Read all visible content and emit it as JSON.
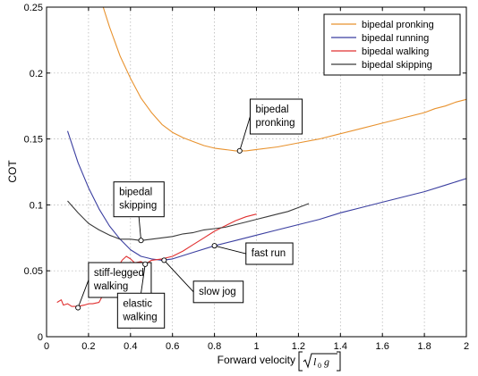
{
  "chart_data": {
    "type": "line",
    "xlabel": "Forward velocity",
    "ylabel": "COT",
    "xlim": [
      0,
      2
    ],
    "ylim": [
      0,
      0.25
    ],
    "x_ticks": [
      "0",
      "0.2",
      "0.4",
      "0.6",
      "0.8",
      "1",
      "1.2",
      "1.4",
      "1.6",
      "1.8",
      "2"
    ],
    "y_ticks": [
      "0",
      "0.05",
      "0.1",
      "0.15",
      "0.2",
      "0.25"
    ],
    "grid": true,
    "legend_position": "top-right",
    "series": [
      {
        "name": "bipedal pronking",
        "color": "#e8922e",
        "x": [
          0.27,
          0.3,
          0.35,
          0.4,
          0.45,
          0.5,
          0.55,
          0.6,
          0.65,
          0.7,
          0.75,
          0.8,
          0.85,
          0.9,
          0.95,
          1.0,
          1.1,
          1.2,
          1.3,
          1.4,
          1.5,
          1.6,
          1.7,
          1.8,
          1.85,
          1.9,
          1.95,
          2.0
        ],
        "y": [
          0.25,
          0.235,
          0.213,
          0.196,
          0.181,
          0.17,
          0.161,
          0.155,
          0.151,
          0.148,
          0.145,
          0.143,
          0.142,
          0.141,
          0.141,
          0.142,
          0.144,
          0.147,
          0.15,
          0.154,
          0.158,
          0.162,
          0.166,
          0.17,
          0.173,
          0.175,
          0.178,
          0.18
        ]
      },
      {
        "name": "bipedal running",
        "color": "#3b3fa0",
        "x": [
          0.1,
          0.15,
          0.2,
          0.25,
          0.3,
          0.35,
          0.4,
          0.45,
          0.5,
          0.55,
          0.6,
          0.7,
          0.8,
          0.9,
          1.0,
          1.1,
          1.2,
          1.3,
          1.4,
          1.5,
          1.6,
          1.7,
          1.8,
          1.9,
          2.0
        ],
        "y": [
          0.156,
          0.132,
          0.113,
          0.097,
          0.084,
          0.074,
          0.066,
          0.061,
          0.059,
          0.058,
          0.059,
          0.064,
          0.069,
          0.073,
          0.077,
          0.081,
          0.085,
          0.089,
          0.094,
          0.098,
          0.102,
          0.106,
          0.11,
          0.115,
          0.12
        ]
      },
      {
        "name": "bipedal walking",
        "color": "#e03030",
        "x": [
          0.05,
          0.07,
          0.08,
          0.1,
          0.12,
          0.15,
          0.18,
          0.2,
          0.22,
          0.25,
          0.27,
          0.3,
          0.33,
          0.36,
          0.38,
          0.4,
          0.42,
          0.45,
          0.47,
          0.5,
          0.55,
          0.6,
          0.65,
          0.7,
          0.75,
          0.8,
          0.85,
          0.9,
          0.95,
          1.0
        ],
        "y": [
          0.026,
          0.028,
          0.024,
          0.025,
          0.023,
          0.023,
          0.024,
          0.025,
          0.025,
          0.026,
          0.032,
          0.04,
          0.05,
          0.058,
          0.061,
          0.059,
          0.056,
          0.057,
          0.055,
          0.058,
          0.059,
          0.061,
          0.065,
          0.07,
          0.075,
          0.08,
          0.084,
          0.088,
          0.091,
          0.093
        ]
      },
      {
        "name": "bipedal skipping",
        "color": "#3a3a3a",
        "x": [
          0.1,
          0.15,
          0.2,
          0.25,
          0.3,
          0.35,
          0.4,
          0.45,
          0.5,
          0.55,
          0.6,
          0.65,
          0.7,
          0.75,
          0.8,
          0.85,
          0.9,
          0.95,
          1.0,
          1.05,
          1.1,
          1.15,
          1.2,
          1.25
        ],
        "y": [
          0.103,
          0.094,
          0.086,
          0.081,
          0.077,
          0.074,
          0.074,
          0.073,
          0.074,
          0.075,
          0.076,
          0.078,
          0.079,
          0.081,
          0.082,
          0.083,
          0.085,
          0.087,
          0.089,
          0.091,
          0.093,
          0.095,
          0.098,
          0.101
        ]
      }
    ],
    "annotations": [
      {
        "label": "bipedal pronking",
        "lines": [
          "bipedal",
          "pronking"
        ],
        "point": [
          0.92,
          0.141
        ],
        "box_corner": [
          0.97,
          0.167
        ]
      },
      {
        "label": "bipedal skipping",
        "lines": [
          "bipedal",
          "skipping"
        ],
        "point": [
          0.45,
          0.073
        ],
        "box_corner": [
          0.44,
          0.091
        ]
      },
      {
        "label": "stiff-legged walking",
        "lines": [
          "stiff-legged",
          "walking"
        ],
        "point": [
          0.15,
          0.022
        ],
        "box_corner": [
          0.2,
          0.043
        ]
      },
      {
        "label": "fast run",
        "lines": [
          "fast run"
        ],
        "point": [
          0.8,
          0.069
        ],
        "box_corner": [
          0.95,
          0.063
        ]
      },
      {
        "label": "slow jog",
        "lines": [
          "slow jog"
        ],
        "point": [
          0.56,
          0.058
        ],
        "box_corner": [
          0.7,
          0.034
        ]
      },
      {
        "label": "elastic walking",
        "lines": [
          "elastic",
          "walking"
        ],
        "point": [
          0.47,
          0.055
        ],
        "box_corner": [
          0.45,
          0.033
        ]
      }
    ]
  }
}
